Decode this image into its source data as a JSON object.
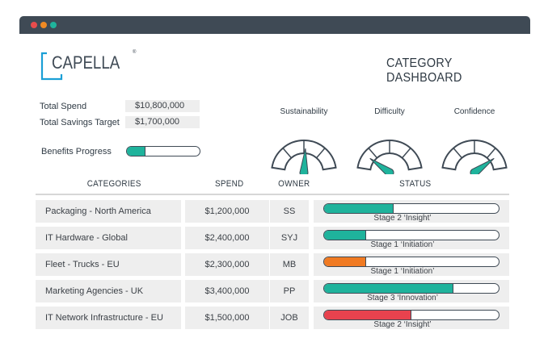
{
  "brand": {
    "name": "CAPELLA",
    "reg": "®"
  },
  "title": "CATEGORY DASHBOARD",
  "summary": {
    "total_spend_label": "Total Spend",
    "total_spend_value": "$10,800,000",
    "savings_target_label": "Total Savings Target",
    "savings_target_value": "$1,700,000",
    "benefits_label": "Benefits Progress",
    "benefits_progress": 0.25
  },
  "gauges": [
    {
      "label": "Sustainability",
      "level": 0.52
    },
    {
      "label": "Difficulty",
      "level": 0.2
    },
    {
      "label": "Confidence",
      "level": 0.8
    }
  ],
  "table": {
    "headers": {
      "categories": "CATEGORIES",
      "spend": "SPEND",
      "owner": "OWNER",
      "status": "STATUS"
    },
    "rows": [
      {
        "category": "Packaging - North America",
        "spend": "$1,200,000",
        "owner": "SS",
        "status": "Stage 2 ‘Insight’",
        "progress": 0.4,
        "color": "#1fb39c"
      },
      {
        "category": "IT Hardware - Global",
        "spend": "$2,400,000",
        "owner": "SYJ",
        "status": "Stage 1 ‘Initiation’",
        "progress": 0.24,
        "color": "#1fb39c"
      },
      {
        "category": "Fleet - Trucks - EU",
        "spend": "$2,300,000",
        "owner": "MB",
        "status": "Stage 1 ‘Initiation’",
        "progress": 0.24,
        "color": "#f07a22"
      },
      {
        "category": "Marketing Agencies - UK",
        "spend": "$3,400,000",
        "owner": "PP",
        "status": "Stage 3 ‘Innovation’",
        "progress": 0.74,
        "color": "#1fb39c"
      },
      {
        "category": "IT Network Infrastructure - EU",
        "spend": "$1,500,000",
        "owner": "JOB",
        "status": "Stage 2 ‘Insight’",
        "progress": 0.5,
        "color": "#e8424e"
      }
    ]
  },
  "colors": {
    "teal": "#1fb39c",
    "dark": "#3f4a55",
    "orange": "#f07a22",
    "red": "#e8424e"
  }
}
